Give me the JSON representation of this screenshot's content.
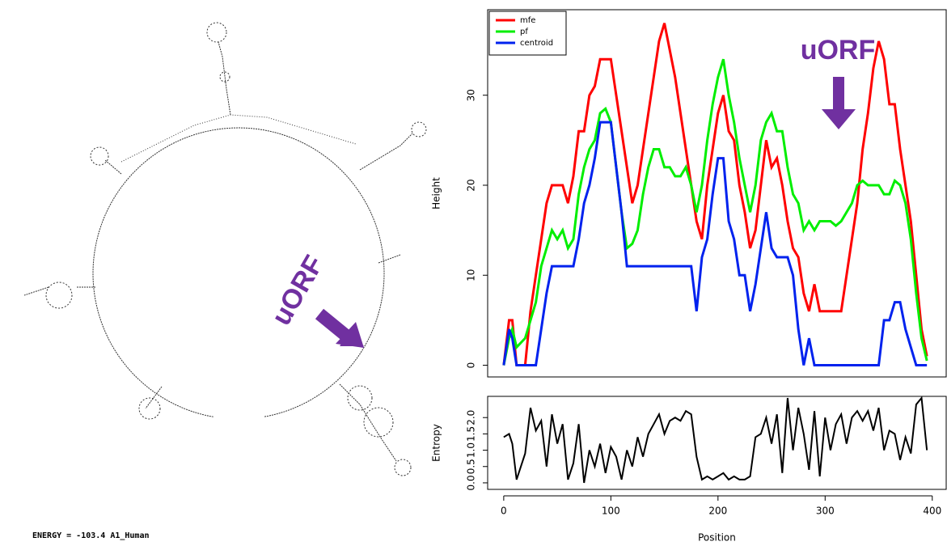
{
  "structure": {
    "annotation": "uORF",
    "label": "ENERGY = -103.4  A1_Human"
  },
  "chart_data": [
    {
      "type": "line",
      "ylabel": "Height",
      "annotation": "uORF",
      "legend": "top-left",
      "xlim": [
        -15,
        413
      ],
      "ylim": [
        -1.3,
        39.5
      ],
      "yticks": [
        0,
        10,
        20,
        30
      ],
      "x": [
        0,
        5,
        8,
        12,
        20,
        25,
        30,
        35,
        40,
        45,
        50,
        55,
        60,
        65,
        70,
        75,
        80,
        85,
        90,
        95,
        100,
        105,
        110,
        115,
        120,
        125,
        130,
        135,
        140,
        145,
        150,
        155,
        160,
        165,
        170,
        175,
        180,
        185,
        190,
        195,
        200,
        205,
        210,
        215,
        220,
        225,
        230,
        235,
        240,
        245,
        250,
        255,
        260,
        265,
        270,
        275,
        280,
        285,
        290,
        295,
        300,
        305,
        310,
        315,
        320,
        325,
        330,
        335,
        340,
        345,
        350,
        355,
        360,
        365,
        370,
        375,
        380,
        385,
        390,
        395
      ],
      "series": [
        {
          "name": "mfe",
          "color": "#ff0000",
          "values": [
            0,
            5,
            5,
            0,
            0,
            6,
            10,
            14,
            18,
            20,
            20,
            20,
            18,
            21,
            26,
            26,
            30,
            31,
            34,
            34,
            34,
            30,
            26,
            22,
            18,
            20,
            24,
            28,
            32,
            36,
            38,
            35,
            32,
            28,
            24,
            20,
            16,
            14,
            20,
            24,
            28,
            30,
            26,
            25,
            20,
            17,
            13,
            15,
            20,
            25,
            22,
            23,
            20,
            16,
            13,
            12,
            8,
            6,
            9,
            6,
            6,
            6,
            6,
            6,
            10,
            14,
            18,
            24,
            28,
            33,
            36,
            34,
            29,
            29,
            24,
            20,
            16,
            10,
            4,
            1
          ]
        },
        {
          "name": "pf",
          "color": "#00ee00",
          "values": [
            0,
            3,
            4,
            2,
            3,
            5,
            7,
            11,
            13,
            15,
            14,
            15,
            13,
            14,
            19,
            22,
            24,
            25,
            28,
            28.5,
            27,
            22,
            17,
            13,
            13.5,
            15,
            19,
            22,
            24,
            24,
            22,
            22,
            21,
            21,
            22,
            20,
            17,
            20,
            25,
            29,
            32,
            34,
            30,
            27,
            23,
            20,
            17,
            20,
            25,
            27,
            28,
            26,
            26,
            22,
            19,
            18,
            15,
            16,
            15,
            16,
            16,
            16,
            15.5,
            16,
            17,
            18,
            20,
            20.5,
            20,
            20,
            20,
            19,
            19,
            20.5,
            20,
            18,
            14,
            8,
            3,
            0.5
          ]
        },
        {
          "name": "centroid",
          "color": "#0022ee",
          "values": [
            0,
            4,
            3,
            0,
            0,
            0,
            0,
            4,
            8,
            11,
            11,
            11,
            11,
            11,
            14,
            18,
            20,
            23,
            27,
            27,
            27,
            22,
            17,
            11,
            11,
            11,
            11,
            11,
            11,
            11,
            11,
            11,
            11,
            11,
            11,
            11,
            6,
            12,
            14,
            19,
            23,
            23,
            16,
            14,
            10,
            10,
            6,
            9,
            13,
            17,
            13,
            12,
            12,
            12,
            10,
            4,
            0,
            3,
            0,
            0,
            0,
            0,
            0,
            0,
            0,
            0,
            0,
            0,
            0,
            0,
            0,
            5,
            5,
            7,
            7,
            4,
            2,
            0,
            0,
            0
          ]
        }
      ]
    },
    {
      "type": "line",
      "ylabel": "Entropy",
      "xlabel": "Position",
      "color": "#000000",
      "xlim": [
        -15,
        413
      ],
      "ylim": [
        -0.2,
        2.65
      ],
      "xticks": [
        0,
        100,
        200,
        300,
        400
      ],
      "yticks": [
        {
          "value": 0,
          "label": "0.0"
        },
        {
          "value": 0.5,
          "label": "0.5"
        },
        {
          "value": 1,
          "label": "1.0"
        },
        {
          "value": 1.5,
          "label": "1.5"
        },
        {
          "value": 2,
          "label": "2.0"
        }
      ],
      "x": [
        0,
        5,
        8,
        12,
        20,
        25,
        30,
        35,
        40,
        45,
        50,
        55,
        60,
        65,
        70,
        75,
        80,
        85,
        90,
        95,
        100,
        105,
        110,
        115,
        120,
        125,
        130,
        135,
        140,
        145,
        150,
        155,
        160,
        165,
        170,
        175,
        180,
        185,
        190,
        195,
        200,
        205,
        210,
        215,
        220,
        225,
        230,
        235,
        240,
        245,
        250,
        255,
        260,
        265,
        270,
        275,
        280,
        285,
        290,
        295,
        300,
        305,
        310,
        315,
        320,
        325,
        330,
        335,
        340,
        345,
        350,
        355,
        360,
        365,
        370,
        375,
        380,
        385,
        390,
        395
      ],
      "values": [
        1.4,
        1.5,
        1.2,
        0.1,
        0.9,
        2.3,
        1.6,
        1.9,
        0.5,
        2.1,
        1.2,
        1.8,
        0.1,
        0.6,
        1.8,
        0.0,
        1.0,
        0.5,
        1.2,
        0.3,
        1.1,
        0.8,
        0.1,
        1.0,
        0.5,
        1.4,
        0.8,
        1.5,
        1.8,
        2.1,
        1.5,
        1.9,
        2.0,
        1.9,
        2.2,
        2.1,
        0.8,
        0.1,
        0.2,
        0.1,
        0.2,
        0.3,
        0.1,
        0.2,
        0.1,
        0.1,
        0.2,
        1.4,
        1.5,
        2.0,
        1.2,
        2.1,
        0.3,
        2.6,
        1.0,
        2.3,
        1.5,
        0.4,
        2.2,
        0.2,
        2.0,
        1.0,
        1.8,
        2.1,
        1.2,
        2.0,
        2.2,
        1.9,
        2.2,
        1.6,
        2.3,
        1.0,
        1.6,
        1.5,
        0.7,
        1.4,
        0.9,
        2.4,
        2.6,
        1.0
      ]
    }
  ]
}
